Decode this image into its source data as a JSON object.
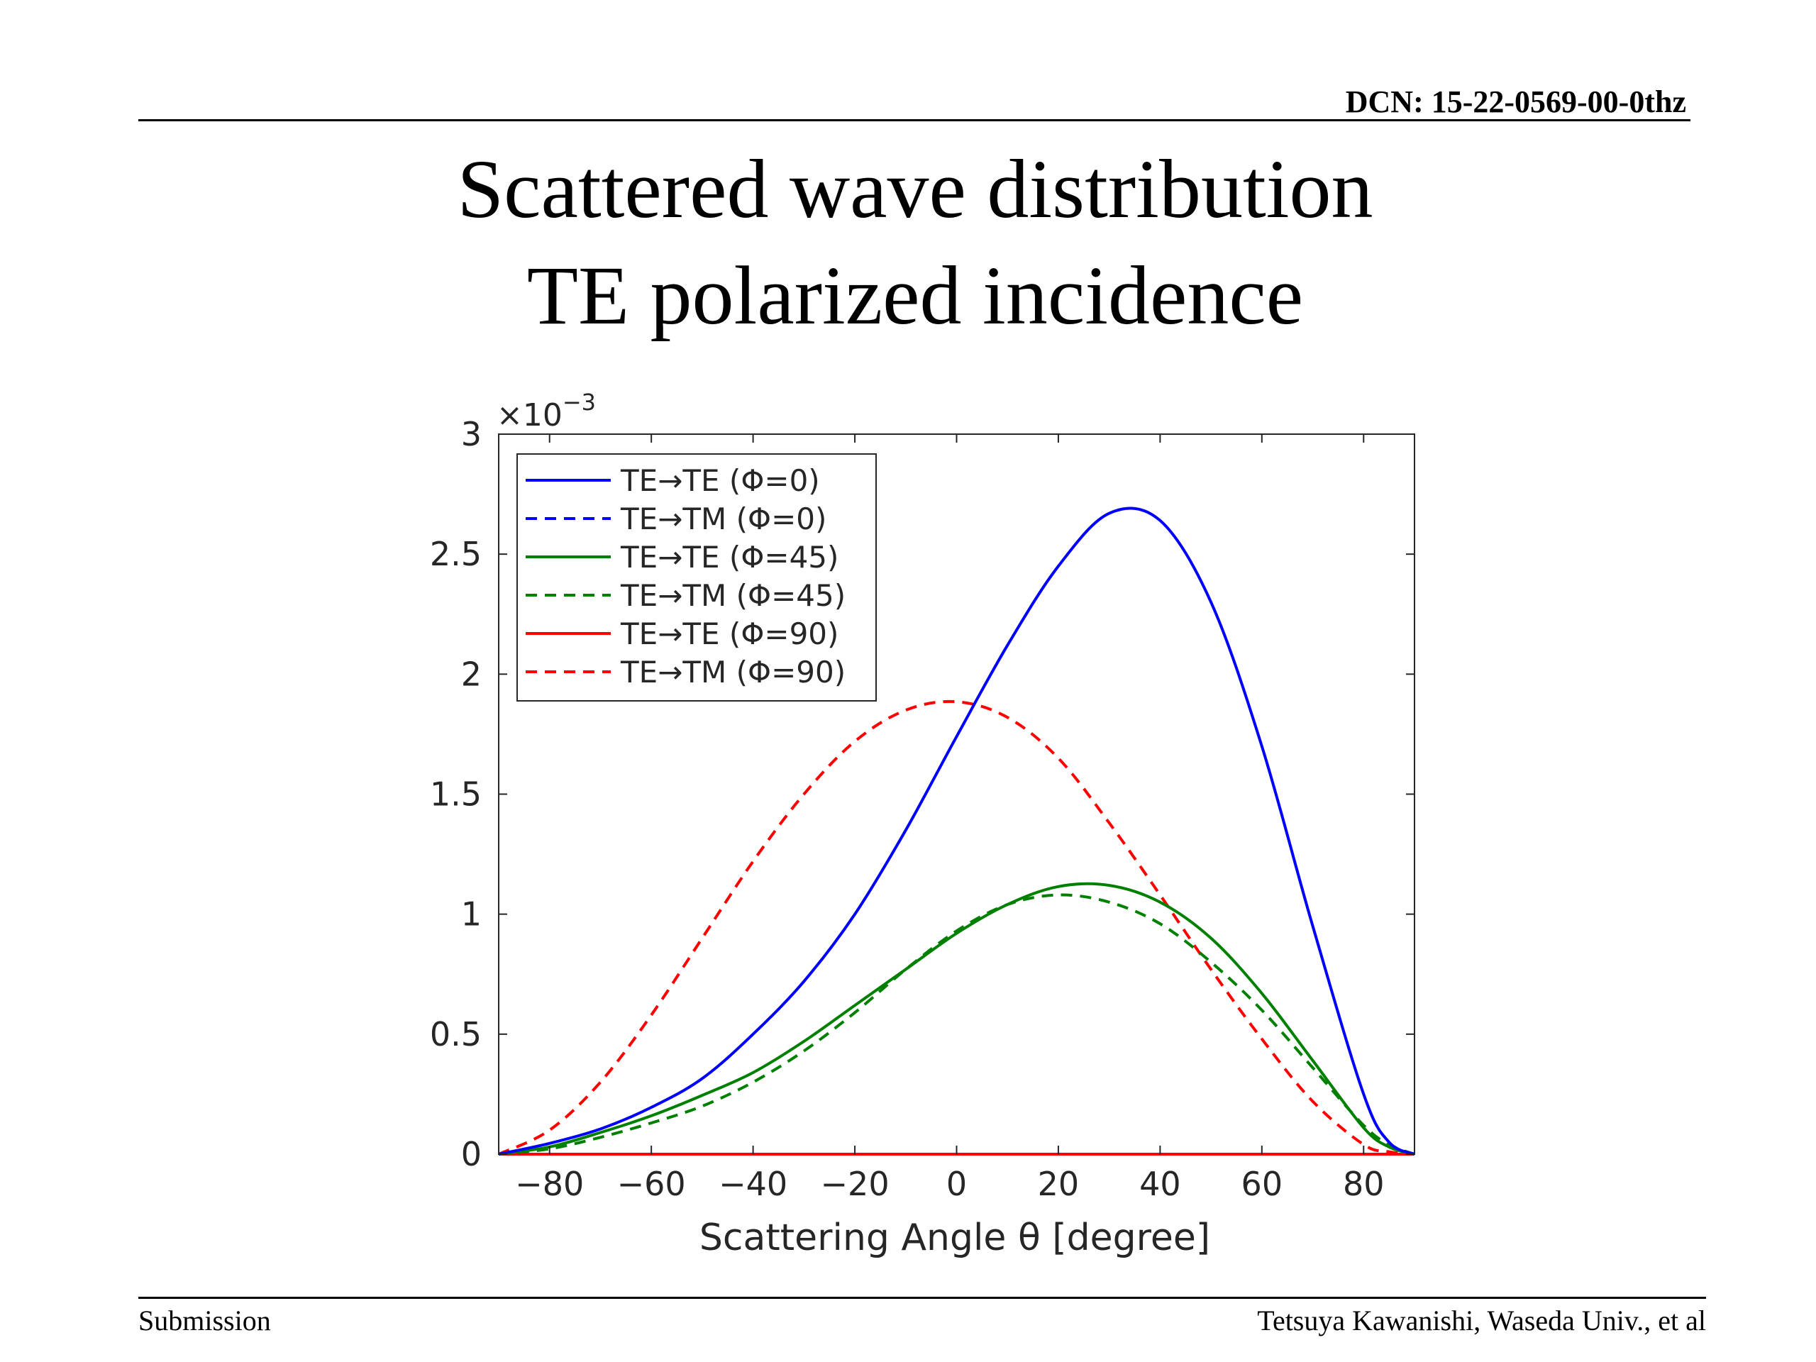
{
  "header": {
    "dcn": "DCN: 15-22-0569-00-0thz",
    "title_line1": "Scattered wave distribution",
    "title_line2": "TE polarized incidence"
  },
  "footer": {
    "left": "Submission",
    "right": "Tetsuya Kawanishi, Waseda Univ., et al"
  },
  "chart_data": {
    "type": "line",
    "xlabel": "Scattering Angle  θ [degree]",
    "ylabel": "",
    "y_exponent_label": "×10",
    "y_exponent_power": "−3",
    "xlim": [
      -90,
      90
    ],
    "ylim": [
      0,
      3
    ],
    "xticks": [
      -80,
      -60,
      -40,
      -20,
      0,
      20,
      40,
      60,
      80
    ],
    "xtick_labels": [
      "−80",
      "−60",
      "−40",
      "−20",
      "0",
      "20",
      "40",
      "60",
      "80"
    ],
    "yticks": [
      0,
      0.5,
      1,
      1.5,
      2,
      2.5,
      3
    ],
    "ytick_labels": [
      "0",
      "0.5",
      "1",
      "1.5",
      "2",
      "2.5",
      "3"
    ],
    "grid": false,
    "legend_position": "top-left",
    "x": [
      -90,
      -80,
      -70,
      -60,
      -50,
      -40,
      -30,
      -20,
      -10,
      0,
      10,
      20,
      30,
      40,
      50,
      60,
      70,
      80,
      85,
      90
    ],
    "series": [
      {
        "name": "TE→TE (Φ=0)",
        "color": "#0000ff",
        "dash": "solid",
        "values": [
          0.0,
          0.045,
          0.105,
          0.195,
          0.315,
          0.5,
          0.72,
          1.0,
          1.35,
          1.74,
          2.12,
          2.45,
          2.67,
          2.64,
          2.3,
          1.7,
          0.95,
          0.25,
          0.05,
          0.0
        ]
      },
      {
        "name": "TE→TM (Φ=0)",
        "color": "#0000ff",
        "dash": "dashed",
        "values": [
          0.0,
          0.0,
          0.0,
          0.0,
          0.0,
          0.0,
          0.0,
          0.0,
          0.0,
          0.0,
          0.0,
          0.0,
          0.0,
          0.0,
          0.0,
          0.0,
          0.0,
          0.0,
          0.0,
          0.0
        ]
      },
      {
        "name": "TE→TE (Φ=45)",
        "color": "#008000",
        "dash": "solid",
        "values": [
          0.0,
          0.03,
          0.09,
          0.16,
          0.245,
          0.34,
          0.47,
          0.62,
          0.77,
          0.92,
          1.04,
          1.115,
          1.12,
          1.05,
          0.9,
          0.67,
          0.39,
          0.11,
          0.03,
          0.0
        ]
      },
      {
        "name": "TE→TM (Φ=45)",
        "color": "#008000",
        "dash": "dashed",
        "values": [
          0.0,
          0.022,
          0.07,
          0.13,
          0.2,
          0.3,
          0.43,
          0.59,
          0.77,
          0.93,
          1.04,
          1.08,
          1.05,
          0.96,
          0.8,
          0.6,
          0.36,
          0.12,
          0.04,
          0.0
        ]
      },
      {
        "name": "TE→TE (Φ=90)",
        "color": "#ff0000",
        "dash": "solid",
        "values": [
          0.0,
          0.0,
          0.0,
          0.0,
          0.0,
          0.0,
          0.0,
          0.0,
          0.0,
          0.0,
          0.0,
          0.0,
          0.0,
          0.0,
          0.0,
          0.0,
          0.0,
          0.0,
          0.0,
          0.0
        ]
      },
      {
        "name": "TE→TM (Φ=90)",
        "color": "#ff0000",
        "dash": "dashed",
        "values": [
          0.0,
          0.1,
          0.3,
          0.58,
          0.9,
          1.22,
          1.5,
          1.72,
          1.85,
          1.885,
          1.82,
          1.65,
          1.38,
          1.08,
          0.77,
          0.48,
          0.22,
          0.04,
          0.01,
          0.0
        ]
      }
    ]
  }
}
